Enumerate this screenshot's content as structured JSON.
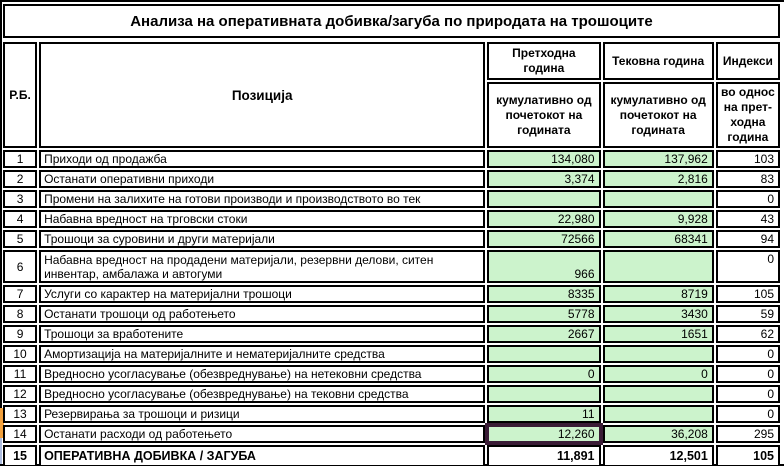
{
  "title": "Анализа на оперативната добивка/загуба по природата на трошоците",
  "header": {
    "rb_label": "Р.Б.",
    "position_label": "Позиција",
    "prev_year_title": "Претходна година",
    "prev_year_sub": "кумулативно од почетокот на годината",
    "curr_year_title": "Тековна година",
    "curr_year_sub": "кумулативно од почетокот на годината",
    "index_title": "Индекси",
    "index_sub": "во однос на прет-ходна година"
  },
  "rows": [
    {
      "num": "1",
      "label": "Приходи од продажба",
      "prev": "134,080",
      "curr": "137,962",
      "index": "103"
    },
    {
      "num": "2",
      "label": "Останати оперативни приходи",
      "prev": "3,374",
      "curr": "2,816",
      "index": "83"
    },
    {
      "num": "3",
      "label": "Промени на залихите на готови производи и производството во тек",
      "prev": "",
      "curr": "",
      "index": "0"
    },
    {
      "num": "4",
      "label": "Набавна вредност на трговски стоки",
      "prev": "22,980",
      "curr": "9,928",
      "index": "43"
    },
    {
      "num": "5",
      "label": "Трошоци за суровини и други материјали",
      "prev": "72566",
      "curr": "68341",
      "index": "94"
    },
    {
      "num": "6",
      "label": "Набавна вредност на продадени материјали, резервни делови, ситен инвентар, амбалажа и автогуми",
      "prev": "966",
      "curr": "",
      "index": "0"
    },
    {
      "num": "7",
      "label": "Услуги со карактер на материјални трошоци",
      "prev": "8335",
      "curr": "8719",
      "index": "105"
    },
    {
      "num": "8",
      "label": "Останати трошоци од работењето",
      "prev": "5778",
      "curr": "3430",
      "index": "59"
    },
    {
      "num": "9",
      "label": "Трошоци за вработените",
      "prev": "2667",
      "curr": "1651",
      "index": "62"
    },
    {
      "num": "10",
      "label": "Амортизација на материјалните и нематеријалните средства",
      "prev": "",
      "curr": "",
      "index": "0"
    },
    {
      "num": "11",
      "label": "Вредносно усогласување (обезвреднување) на нетековни средства",
      "prev": "0",
      "curr": "0",
      "index": "0"
    },
    {
      "num": "12",
      "label": "Вредносно усогласување (обезвреднување) на тековни средства",
      "prev": "",
      "curr": "",
      "index": "0"
    },
    {
      "num": "13",
      "label": "Резервирања за трошоци и ризици",
      "prev": "11",
      "curr": "",
      "index": "0"
    },
    {
      "num": "14",
      "label": "Останати расходи од работењето",
      "prev": "12,260",
      "curr": "36,208",
      "index": "295"
    },
    {
      "num": "15",
      "label": "ОПЕРАТИВНА ДОБИВКА / ЗАГУБА",
      "prev": "11,891",
      "curr": "12,501",
      "index": "105"
    }
  ],
  "selection": {
    "row_num": "14",
    "column": "prev",
    "value": "12,260"
  },
  "colors": {
    "cell_fill_green": "#ccf3cc",
    "selection_border": "#3a1c36",
    "row_marker_orange": "#f2a13e",
    "grid_border": "#000000"
  }
}
